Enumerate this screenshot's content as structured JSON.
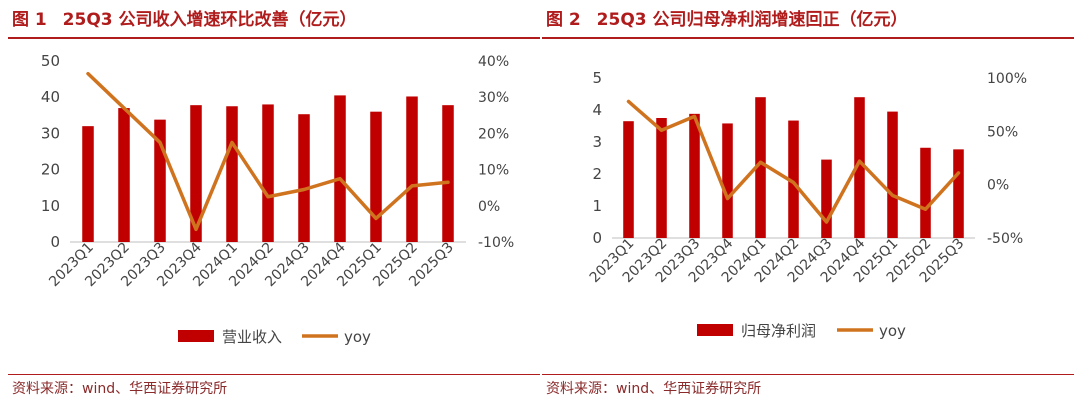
{
  "colors": {
    "bar": "#c00000",
    "line": "#d0731f",
    "title": "#b01c1c",
    "axis_text": "#444444",
    "axis_line": "#bfbfbf"
  },
  "source_text": "资料来源：wind、华西证券研究所",
  "chart_data": [
    {
      "type": "bar",
      "fig_label": "图 1",
      "title": "25Q3 公司收入增速环比改善（亿元）",
      "categories": [
        "2023Q1",
        "2023Q2",
        "2023Q3",
        "2023Q4",
        "2024Q1",
        "2024Q2",
        "2024Q3",
        "2024Q4",
        "2025Q1",
        "2025Q2",
        "2025Q3"
      ],
      "series": [
        {
          "name": "营业收入",
          "type": "bar",
          "axis": "left",
          "values": [
            32,
            37,
            33.8,
            37.8,
            37.5,
            38,
            35.3,
            40.5,
            36,
            40.2,
            37.8
          ]
        },
        {
          "name": "yoy",
          "type": "line",
          "axis": "right",
          "values": [
            0.365,
            0.27,
            0.175,
            -0.065,
            0.175,
            0.025,
            0.045,
            0.075,
            -0.035,
            0.055,
            0.065
          ]
        }
      ],
      "ylim": [
        0,
        50
      ],
      "yticks": [
        0,
        10,
        20,
        30,
        40,
        50
      ],
      "y2lim": [
        -0.1,
        0.4
      ],
      "y2ticks": [
        "-10%",
        "0%",
        "10%",
        "20%",
        "30%",
        "40%"
      ],
      "legend": [
        "营业收入",
        "yoy"
      ],
      "legend_position": "bottom"
    },
    {
      "type": "bar",
      "fig_label": "图 2",
      "title": "25Q3 公司归母净利润增速回正（亿元）",
      "categories": [
        "2023Q1",
        "2023Q2",
        "2023Q3",
        "2023Q4",
        "2024Q1",
        "2024Q2",
        "2024Q3",
        "2024Q4",
        "2025Q1",
        "2025Q2",
        "2025Q3"
      ],
      "series": [
        {
          "name": "归母净利润",
          "type": "bar",
          "axis": "left",
          "values": [
            3.65,
            3.75,
            3.88,
            3.58,
            4.4,
            3.67,
            2.45,
            4.4,
            3.95,
            2.82,
            2.77
          ]
        },
        {
          "name": "yoy",
          "type": "line",
          "axis": "right",
          "values": [
            0.78,
            0.51,
            0.64,
            -0.13,
            0.21,
            0.02,
            -0.35,
            0.22,
            -0.1,
            -0.23,
            0.11
          ]
        }
      ],
      "ylim": [
        0,
        5
      ],
      "yticks": [
        0,
        1,
        2,
        3,
        4,
        5
      ],
      "y2lim": [
        -0.5,
        1.0
      ],
      "y2ticks": [
        "-50%",
        "0%",
        "50%",
        "100%"
      ],
      "legend": [
        "归母净利润",
        "yoy"
      ],
      "legend_position": "bottom"
    }
  ]
}
